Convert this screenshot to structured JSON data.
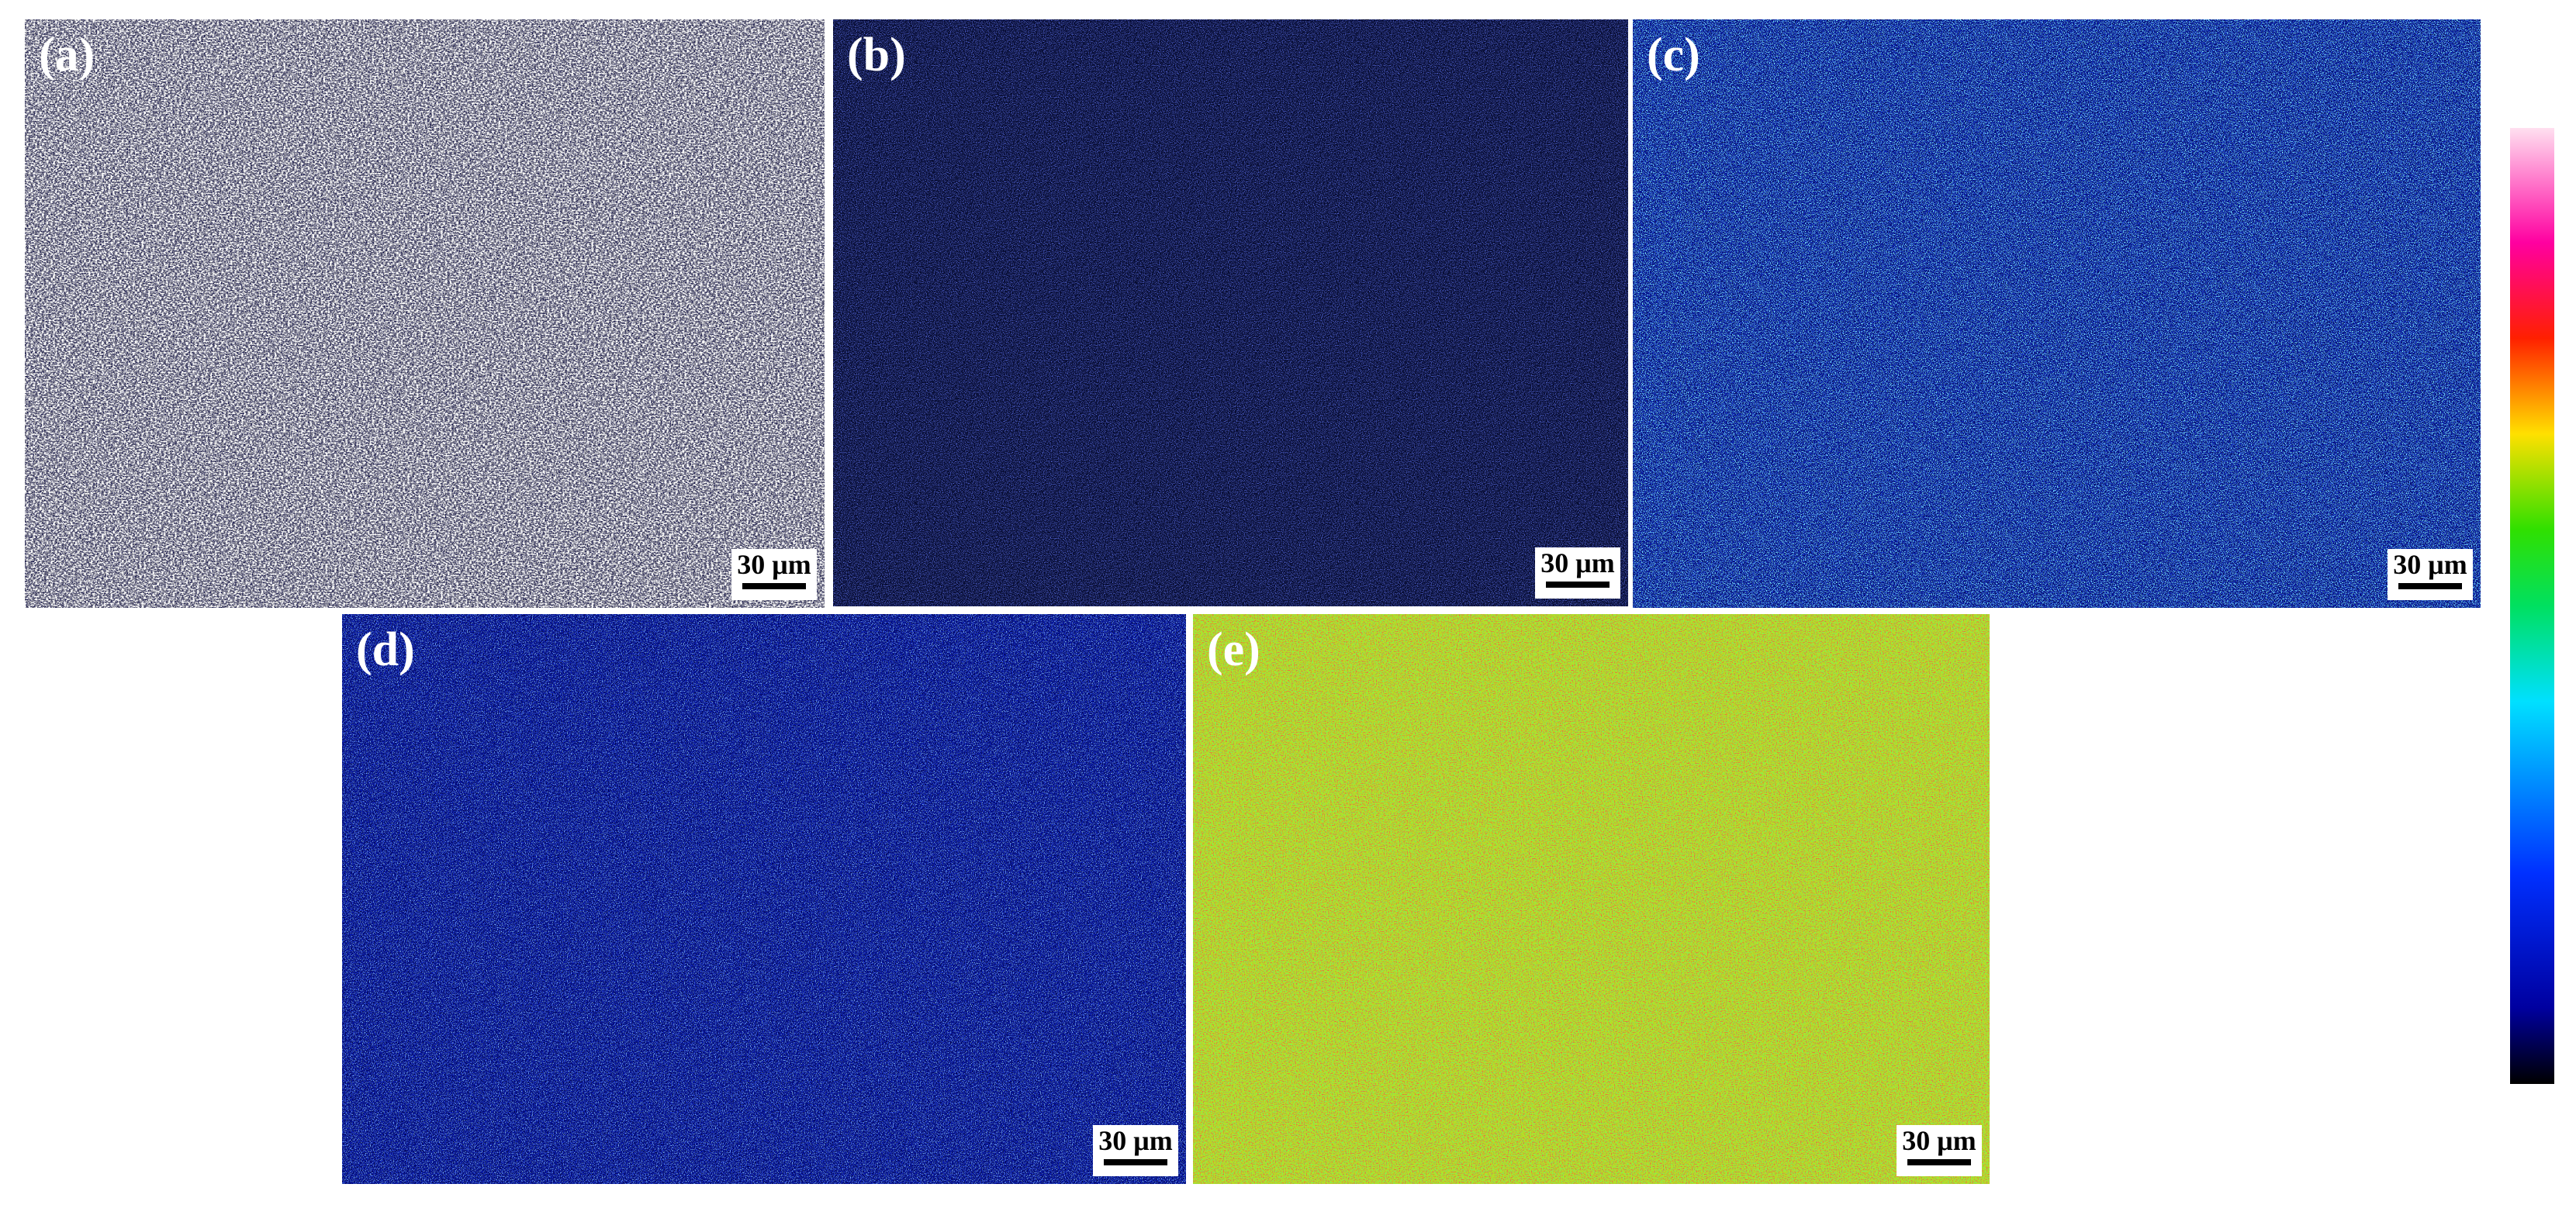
{
  "panels": [
    {
      "label": "(a)",
      "scale_bar": "30 μm"
    },
    {
      "label": "(b)",
      "scale_bar": "30 μm"
    },
    {
      "label": "(c)",
      "scale_bar": "30 μm"
    },
    {
      "label": "(d)",
      "scale_bar": "30 μm"
    },
    {
      "label": "(e)",
      "scale_bar": "30 μm"
    }
  ]
}
